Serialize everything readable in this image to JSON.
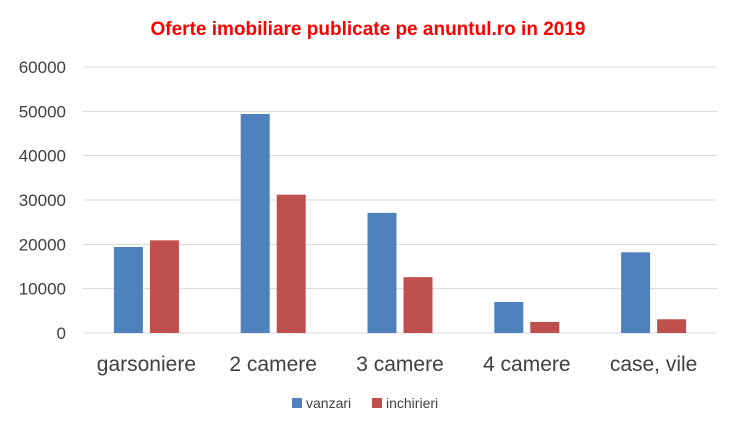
{
  "chart_data": {
    "type": "bar",
    "title": "Oferte imobiliare publicate pe anuntul.ro in 2019",
    "title_color": "#ff0000",
    "categories": [
      "garsoniere",
      "2 camere",
      "3 camere",
      "4 camere",
      "case, vile"
    ],
    "series": [
      {
        "name": "vanzari",
        "color": "#4f81bd",
        "values": [
          19400,
          49400,
          27100,
          7000,
          18200
        ]
      },
      {
        "name": "inchirieri",
        "color": "#c0504d",
        "values": [
          20900,
          31200,
          12600,
          2500,
          3100
        ]
      }
    ],
    "ylim": [
      0,
      60000
    ],
    "yticks": [
      "0",
      "10000",
      "20000",
      "30000",
      "40000",
      "50000",
      "60000"
    ],
    "xlabel": "",
    "ylabel": "",
    "grid": true,
    "legend_position": "bottom"
  }
}
